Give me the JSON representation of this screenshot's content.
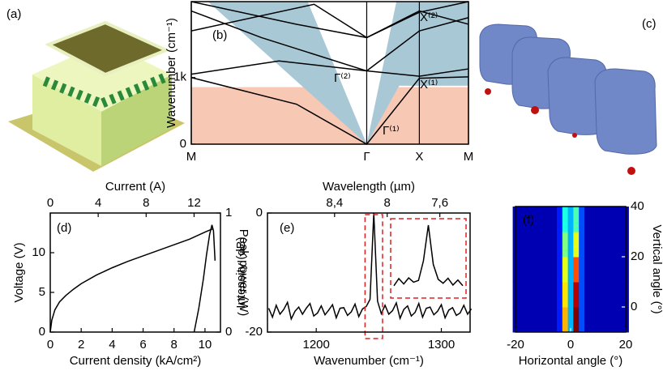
{
  "panel_labels": {
    "a": "(a)",
    "c": "(c)"
  },
  "chart_data": [
    {
      "type": "band",
      "panel_label": "(b)",
      "y_label": "Wavenumber (cm⁻¹)",
      "xlim": [
        0,
        1.58
      ],
      "xticks": [
        {
          "value": 0,
          "label": "M"
        },
        {
          "value": 1,
          "label": "Γ"
        },
        {
          "value": 1.3,
          "label": "X"
        },
        {
          "value": 1.58,
          "label": "M"
        }
      ],
      "ylim": [
        0,
        2140
      ],
      "yticks": [
        0,
        {
          "value": 1000,
          "label": "1k"
        }
      ],
      "annotations": [
        "Γ⁽²⁾",
        "Γ⁽¹⁾",
        "X⁽²⁾",
        "X⁽¹⁾"
      ],
      "series": [
        {
          "color": "#000000",
          "x": [
            0,
            0.6,
            1,
            1.3,
            1.58
          ],
          "values": [
            1000,
            600,
            0,
            990,
            1010
          ]
        },
        {
          "color": "#000000",
          "x": [
            0,
            0.5,
            1,
            1.3,
            1.58
          ],
          "values": [
            1050,
            1250,
            1100,
            1020,
            1130
          ]
        },
        {
          "color": "#000000",
          "x": [
            0,
            0.4,
            1,
            1.3,
            1.58
          ],
          "values": [
            2000,
            1600,
            1100,
            1700,
            1900
          ]
        },
        {
          "color": "#000000",
          "x": [
            0,
            0.6,
            1,
            1.3,
            1.58
          ],
          "values": [
            2140,
            1800,
            1600,
            1980,
            2140
          ]
        },
        {
          "color": "#000000",
          "x": [
            0,
            0.7,
            1,
            1.3,
            1.58
          ],
          "values": [
            1700,
            2100,
            1600,
            2000,
            1800
          ]
        }
      ]
    },
    {
      "type": "line",
      "panel_label": "(d)",
      "x_label": "Current density (kA/cm²)",
      "x2_label": "Current (A)",
      "y_label": "Voltage (V)",
      "y2_label": "Peak power (W)",
      "xlim": [
        0,
        11
      ],
      "xticks": [
        0,
        2,
        4,
        6,
        8,
        10
      ],
      "x2lim": [
        0,
        14.2
      ],
      "x2ticks": [
        0,
        4,
        8,
        12
      ],
      "ylim": [
        0,
        15
      ],
      "yticks": [
        0,
        5,
        10
      ],
      "y2lim": [
        0,
        1
      ],
      "y2ticks": [
        0,
        1
      ],
      "series": [
        {
          "color": "#000000",
          "x": [
            0,
            0.1,
            0.3,
            0.6,
            1,
            1.5,
            2,
            3,
            4,
            5,
            6,
            7,
            8,
            9,
            10,
            10.5
          ],
          "values": [
            0,
            1.5,
            2.8,
            3.8,
            4.6,
            5.4,
            6.1,
            7.2,
            8.1,
            8.9,
            9.6,
            10.3,
            11,
            11.7,
            12.6,
            13
          ]
        },
        {
          "color": "#000000",
          "axis": "y2",
          "x": [
            9.3,
            9.6,
            9.9,
            10.1,
            10.3,
            10.45,
            10.55,
            10.65
          ],
          "values": [
            0,
            0.2,
            0.45,
            0.65,
            0.82,
            0.9,
            0.85,
            0.6
          ]
        }
      ]
    },
    {
      "type": "spectrum",
      "panel_label": "(e)",
      "x_label": "Wavenumber (cm⁻¹)",
      "x2_label": "Wavelength (µm)",
      "y_label": "Intensity (dB)",
      "xlim": [
        1161,
        1323
      ],
      "xticks": [
        1200,
        1300
      ],
      "x2lim": [
        8.91,
        7.37
      ],
      "x2ticks": [
        {
          "value": 8.4,
          "label": "8,4"
        },
        8,
        {
          "value": 7.6,
          "label": "7,6"
        }
      ],
      "ylim": [
        -20,
        0
      ],
      "yticks": [
        0,
        -20
      ],
      "highlight": [
        1239,
        1253
      ],
      "highlight_color": "#e02020",
      "x": [
        1162,
        1165,
        1168,
        1171,
        1174,
        1177,
        1180,
        1183,
        1186,
        1189,
        1192,
        1195,
        1198,
        1201,
        1204,
        1207,
        1210,
        1213,
        1216,
        1219,
        1222,
        1225,
        1228,
        1231,
        1234,
        1237,
        1240,
        1243,
        1246,
        1249,
        1252,
        1255,
        1258,
        1261,
        1264,
        1267,
        1270,
        1273,
        1276,
        1279,
        1282,
        1285,
        1288,
        1291,
        1294,
        1297,
        1300,
        1303,
        1306,
        1309,
        1312,
        1315,
        1318,
        1321,
        1324
      ],
      "values": [
        -16,
        -17.5,
        -15.5,
        -17,
        -16.2,
        -15,
        -17.8,
        -16.5,
        -15.8,
        -17,
        -16,
        -15.2,
        -17.3,
        -16.8,
        -15.6,
        -17.1,
        -16.3,
        -15.4,
        -17.6,
        -16,
        -15.9,
        -17.2,
        -16.6,
        -15.3,
        -17.4,
        -16.1,
        -15.7,
        -14.5,
        0,
        -14.8,
        -16.9,
        -15.5,
        -17,
        -16.4,
        -15.1,
        -17.7,
        -16.2,
        -15.6,
        -17.3,
        -16.7,
        -15.2,
        -17.5,
        -16,
        -15.8,
        -17.1,
        -16.5,
        -15.4,
        -17.6,
        -16.3,
        -15.9,
        -17.2,
        -16.8,
        -15.5,
        -17,
        -16.1
      ],
      "inset": {
        "values": [
          -17,
          -15,
          -16.5,
          -14.8,
          -16,
          -15.5,
          -10,
          0,
          -11,
          -15.2,
          -16.3,
          -14.9,
          -16.8,
          -15.4,
          -17
        ]
      }
    },
    {
      "type": "heatmap",
      "panel_label": "(f)",
      "x_label": "Horizontal angle (°)",
      "y_label": "Vertical angle (°)",
      "xlim": [
        -20,
        20
      ],
      "xticks": [
        -20,
        0,
        20
      ],
      "ylim": [
        -10,
        40
      ],
      "yticks": [
        0,
        20,
        40
      ],
      "x": [
        -20,
        -18,
        -16,
        -14,
        -12,
        -10,
        -8,
        -6,
        -4,
        -2,
        0,
        2,
        4,
        6,
        8,
        10,
        12,
        14,
        16,
        18,
        20
      ],
      "y": [
        -5,
        5,
        15,
        25,
        35
      ],
      "z": [
        [
          0.05,
          0.05,
          0.05,
          0.05,
          0.05,
          0.05,
          0.05,
          0.05,
          0.15,
          0.7,
          0.3,
          1.0,
          0.2,
          0.05,
          0.05,
          0.05,
          0.05,
          0.05,
          0.05,
          0.05,
          0.05
        ],
        [
          0.05,
          0.05,
          0.05,
          0.05,
          0.05,
          0.05,
          0.05,
          0.05,
          0.15,
          0.65,
          0.3,
          0.95,
          0.2,
          0.05,
          0.05,
          0.05,
          0.05,
          0.05,
          0.05,
          0.05,
          0.05
        ],
        [
          0.05,
          0.05,
          0.05,
          0.05,
          0.05,
          0.05,
          0.05,
          0.05,
          0.15,
          0.6,
          0.3,
          0.8,
          0.2,
          0.05,
          0.05,
          0.05,
          0.05,
          0.05,
          0.05,
          0.05,
          0.05
        ],
        [
          0.05,
          0.05,
          0.05,
          0.05,
          0.05,
          0.05,
          0.05,
          0.05,
          0.15,
          0.5,
          0.3,
          0.6,
          0.2,
          0.05,
          0.05,
          0.05,
          0.05,
          0.05,
          0.05,
          0.05,
          0.05
        ],
        [
          0.05,
          0.05,
          0.05,
          0.05,
          0.05,
          0.05,
          0.05,
          0.05,
          0.15,
          0.4,
          0.3,
          0.45,
          0.2,
          0.05,
          0.05,
          0.05,
          0.05,
          0.05,
          0.05,
          0.05,
          0.05
        ]
      ]
    }
  ]
}
